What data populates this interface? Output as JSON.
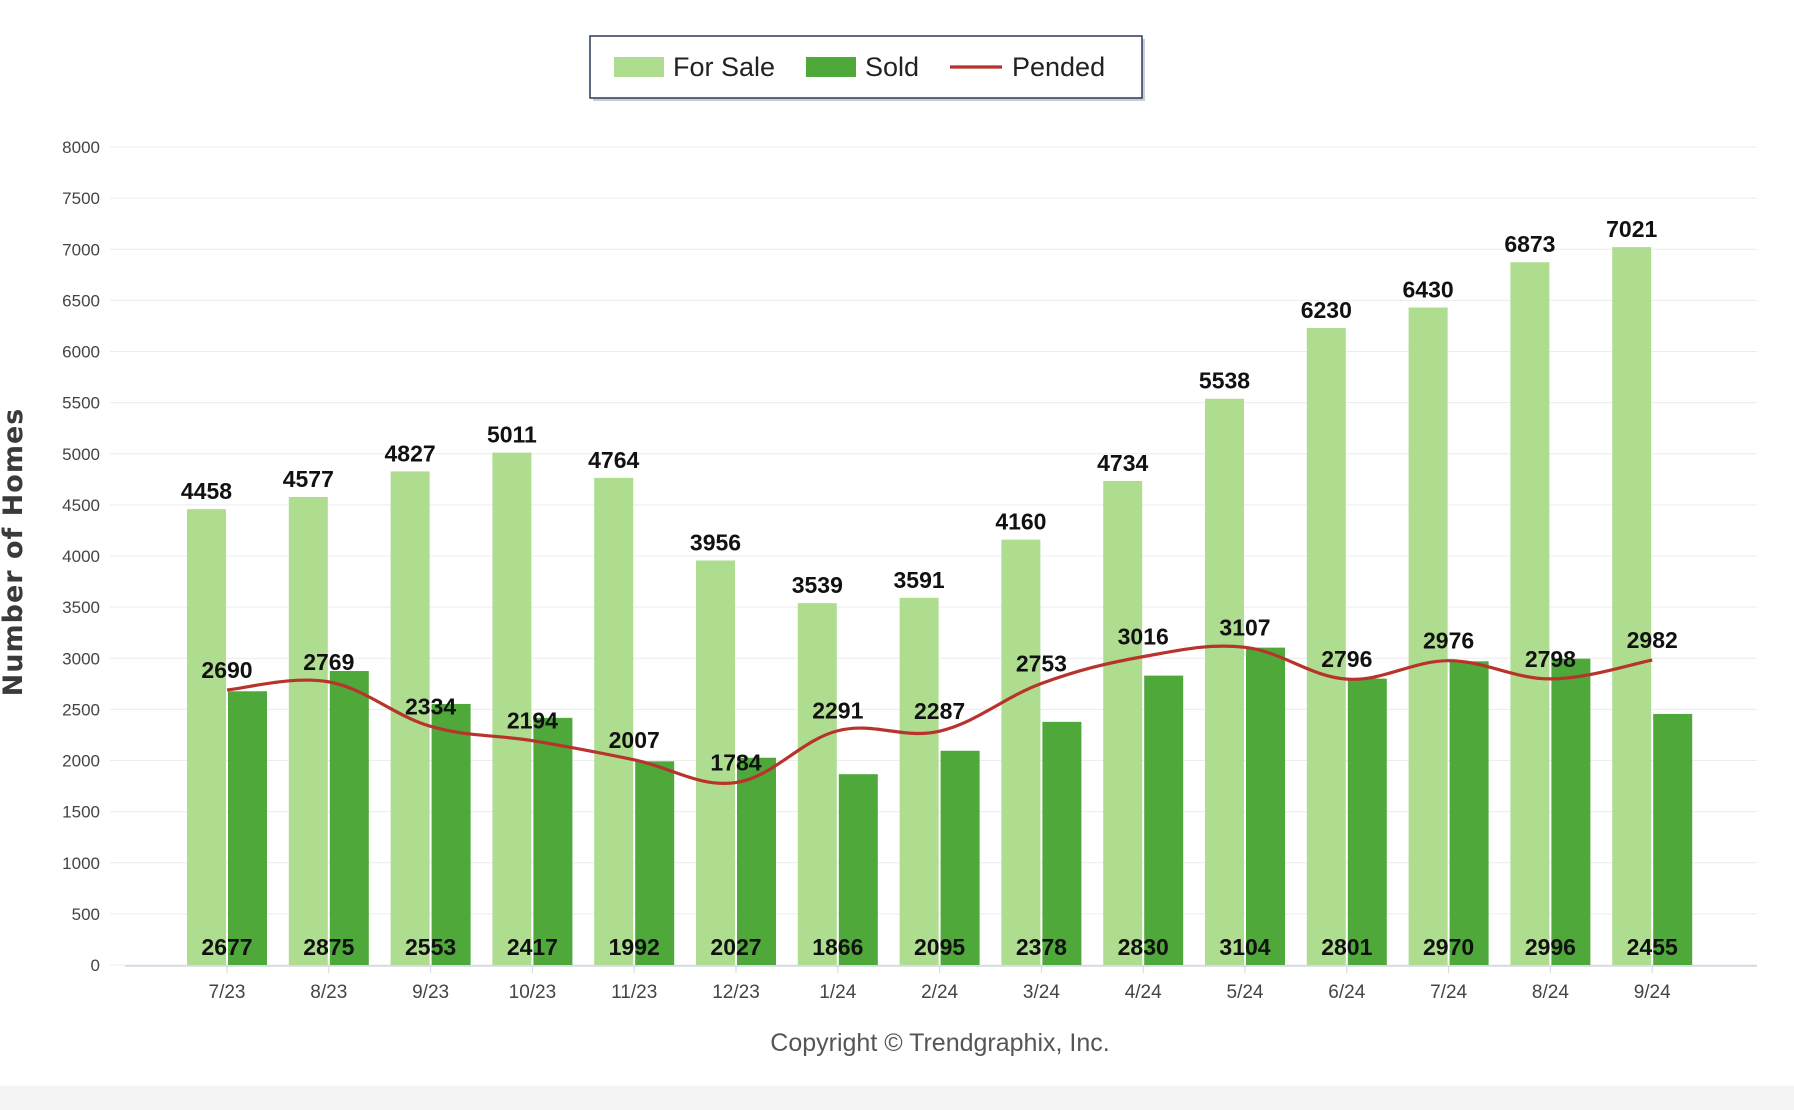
{
  "chart_data": {
    "type": "bar",
    "ylabel": "Number of Homes",
    "xlabel": "",
    "title": "",
    "ylim": [
      0,
      8000
    ],
    "ytick_step": 500,
    "grid": true,
    "legend_position": "top-center",
    "categories": [
      "7/23",
      "8/23",
      "9/23",
      "10/23",
      "11/23",
      "12/23",
      "1/24",
      "2/24",
      "3/24",
      "4/24",
      "5/24",
      "6/24",
      "7/24",
      "8/24",
      "9/24"
    ],
    "series": [
      {
        "name": "For Sale",
        "kind": "bar",
        "color": "#aedd90",
        "values": [
          4458,
          4577,
          4827,
          5011,
          4764,
          3956,
          3539,
          3591,
          4160,
          4734,
          5538,
          6230,
          6430,
          6873,
          7021
        ]
      },
      {
        "name": "Sold",
        "kind": "bar",
        "color": "#4ea83a",
        "values": [
          2677,
          2875,
          2553,
          2417,
          1992,
          2027,
          1866,
          2095,
          2378,
          2830,
          3104,
          2801,
          2970,
          2996,
          2455
        ]
      },
      {
        "name": "Pended",
        "kind": "line",
        "color": "#b8332b",
        "values": [
          2690,
          2769,
          2334,
          2194,
          2007,
          1784,
          2291,
          2287,
          2753,
          3016,
          3107,
          2796,
          2976,
          2798,
          2982
        ]
      }
    ]
  },
  "footer": {
    "copyright": "Copyright © Trendgraphix, Inc."
  }
}
